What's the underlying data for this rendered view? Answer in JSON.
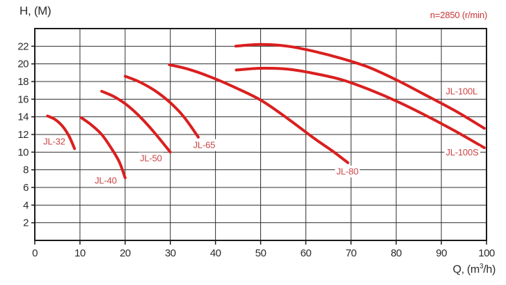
{
  "page": {
    "y_axis_title": "H, (M)",
    "speed_annotation": "n=2850 (r/min)",
    "x_axis_title_prefix": "Q, (m",
    "x_axis_title_sup": "3",
    "x_axis_title_suffix": "/h)"
  },
  "colors": {
    "background": "#ffffff",
    "curve": "#da1f1f",
    "series_label": "#cc4444",
    "annotation": "#cc3333",
    "grid": "#2f2f2f",
    "border": "#1a1a1a",
    "tick_text": "#2b2b2b"
  },
  "chart_data": {
    "type": "line",
    "title": "",
    "xlabel": "Q, (m³/h)",
    "ylabel": "H, (M)",
    "annotation": "n=2850 (r/min)",
    "xlim": [
      0,
      100
    ],
    "ylim": [
      0,
      24
    ],
    "x_ticks": [
      0,
      10,
      20,
      30,
      40,
      50,
      60,
      70,
      80,
      90,
      100
    ],
    "y_ticks": [
      2,
      4,
      6,
      8,
      10,
      12,
      14,
      16,
      18,
      20,
      22
    ],
    "grid": true,
    "legend_position": "inline-labels",
    "series": [
      {
        "name": "JL-32",
        "label_pos": [
          4.3,
          11.2
        ],
        "points": [
          [
            2.8,
            14.1
          ],
          [
            4.5,
            13.7
          ],
          [
            6.2,
            12.9
          ],
          [
            7.6,
            11.8
          ],
          [
            8.8,
            10.4
          ]
        ]
      },
      {
        "name": "JL-40",
        "label_pos": [
          15.7,
          6.8
        ],
        "points": [
          [
            10.3,
            13.9
          ],
          [
            12.5,
            13.1
          ],
          [
            14.8,
            12.0
          ],
          [
            17.0,
            10.4
          ],
          [
            18.7,
            8.9
          ],
          [
            20.0,
            7.1
          ]
        ]
      },
      {
        "name": "JL-50",
        "label_pos": [
          25.7,
          9.3
        ],
        "points": [
          [
            14.8,
            16.9
          ],
          [
            17.5,
            16.3
          ],
          [
            20.5,
            15.3
          ],
          [
            23.5,
            13.9
          ],
          [
            26.5,
            12.2
          ],
          [
            30.0,
            10.0
          ]
        ]
      },
      {
        "name": "JL-65",
        "label_pos": [
          37.5,
          10.8
        ],
        "points": [
          [
            20.0,
            18.6
          ],
          [
            23.0,
            18.0
          ],
          [
            26.5,
            17.0
          ],
          [
            30.0,
            15.6
          ],
          [
            33.0,
            14.0
          ],
          [
            36.2,
            11.7
          ]
        ]
      },
      {
        "name": "JL-80",
        "label_pos": [
          69.2,
          7.8
        ],
        "points": [
          [
            29.8,
            19.9
          ],
          [
            34.0,
            19.4
          ],
          [
            39.0,
            18.5
          ],
          [
            44.0,
            17.4
          ],
          [
            50.0,
            15.9
          ],
          [
            56.0,
            13.8
          ],
          [
            62.0,
            11.5
          ],
          [
            66.0,
            10.1
          ],
          [
            69.3,
            8.8
          ]
        ]
      },
      {
        "name": "JL-100L",
        "label_pos": [
          94.5,
          16.9
        ],
        "points": [
          [
            44.5,
            22.0
          ],
          [
            50.0,
            22.2
          ],
          [
            56.0,
            22.0
          ],
          [
            62.0,
            21.4
          ],
          [
            68.0,
            20.6
          ],
          [
            74.0,
            19.6
          ],
          [
            80.0,
            18.2
          ],
          [
            86.0,
            16.6
          ],
          [
            93.0,
            14.7
          ],
          [
            99.5,
            12.7
          ]
        ]
      },
      {
        "name": "JL-100S",
        "label_pos": [
          94.6,
          10.0
        ],
        "points": [
          [
            44.6,
            19.3
          ],
          [
            50.0,
            19.5
          ],
          [
            56.0,
            19.4
          ],
          [
            62.0,
            18.9
          ],
          [
            68.0,
            18.2
          ],
          [
            74.0,
            17.1
          ],
          [
            80.0,
            15.8
          ],
          [
            86.0,
            14.3
          ],
          [
            93.0,
            12.4
          ],
          [
            99.5,
            10.5
          ]
        ]
      }
    ]
  }
}
